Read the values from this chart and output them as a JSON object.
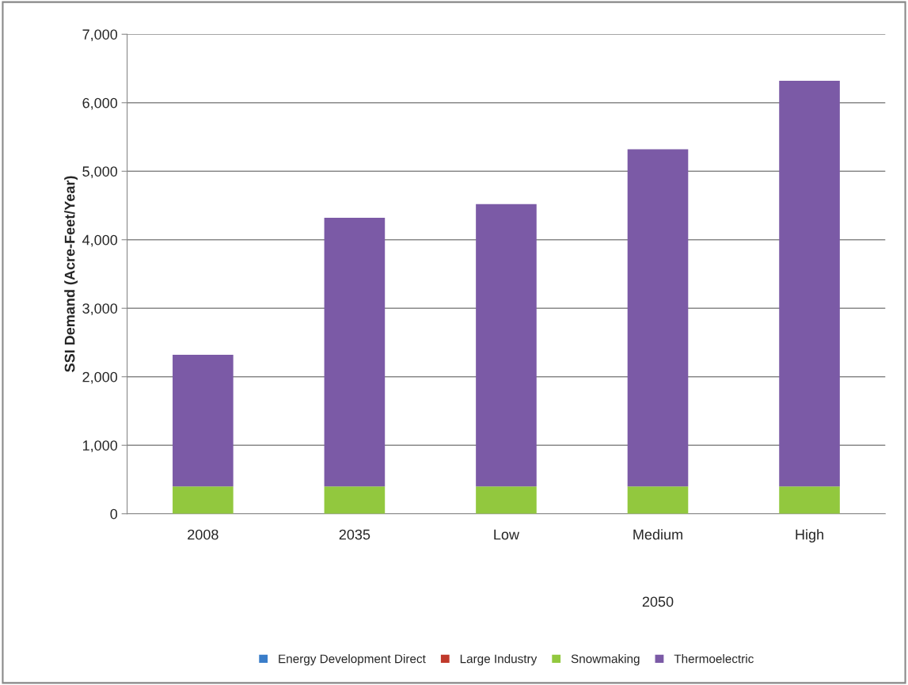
{
  "chart_data": {
    "type": "bar",
    "stacked": true,
    "ylabel": "SSI Demand (Acre-Feet/Year)",
    "categories": [
      "2008",
      "2035",
      "Low",
      "Medium",
      "High"
    ],
    "series": [
      {
        "name": "Energy Development Direct",
        "color": "#3a7dc9",
        "values": [
          0,
          0,
          0,
          0,
          0
        ]
      },
      {
        "name": "Large Industry",
        "color": "#c0392b",
        "values": [
          0,
          0,
          0,
          0,
          0
        ]
      },
      {
        "name": "Snowmaking",
        "color": "#92c83e",
        "values": [
          400,
          400,
          400,
          400,
          400
        ]
      },
      {
        "name": "Thermoelectric",
        "color": "#7b5aa6",
        "values": [
          1920,
          3920,
          4120,
          4920,
          5920
        ]
      }
    ],
    "annotations": [
      "2050"
    ],
    "ylim": [
      0,
      7000
    ],
    "yticks": [
      {
        "value": 0,
        "label": "0"
      },
      {
        "value": 1000,
        "label": "1,000"
      },
      {
        "value": 2000,
        "label": "2,000"
      },
      {
        "value": 3000,
        "label": "3,000"
      },
      {
        "value": 4000,
        "label": "4,000"
      },
      {
        "value": 5000,
        "label": "5,000"
      },
      {
        "value": 6000,
        "label": "6,000"
      },
      {
        "value": 7000,
        "label": "7,000"
      }
    ],
    "grid": "y",
    "legend": "bottom"
  }
}
